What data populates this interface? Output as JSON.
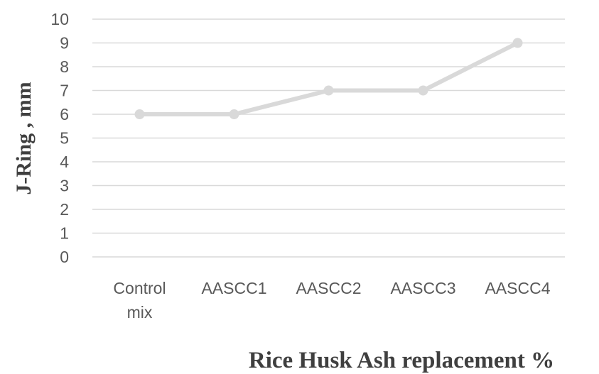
{
  "chart_data": {
    "type": "line",
    "categories": [
      [
        "Control",
        "mix"
      ],
      [
        "AASCC1"
      ],
      [
        "AASCC2"
      ],
      [
        "AASCC3"
      ],
      [
        "AASCC4"
      ]
    ],
    "series": [
      {
        "values": [
          6,
          6,
          7,
          7,
          9
        ],
        "color": "#d9d9d9"
      }
    ],
    "ylabel": "J-Ring , mm",
    "xlabel": "Rice Husk Ash replacement  %",
    "ylim": [
      0,
      10
    ],
    "yticks": [
      "0",
      "1",
      "2",
      "3",
      "4",
      "5",
      "6",
      "7",
      "8",
      "9",
      "10"
    ],
    "grid": true,
    "gridColor": "#d9d9d9",
    "legend": "none"
  }
}
